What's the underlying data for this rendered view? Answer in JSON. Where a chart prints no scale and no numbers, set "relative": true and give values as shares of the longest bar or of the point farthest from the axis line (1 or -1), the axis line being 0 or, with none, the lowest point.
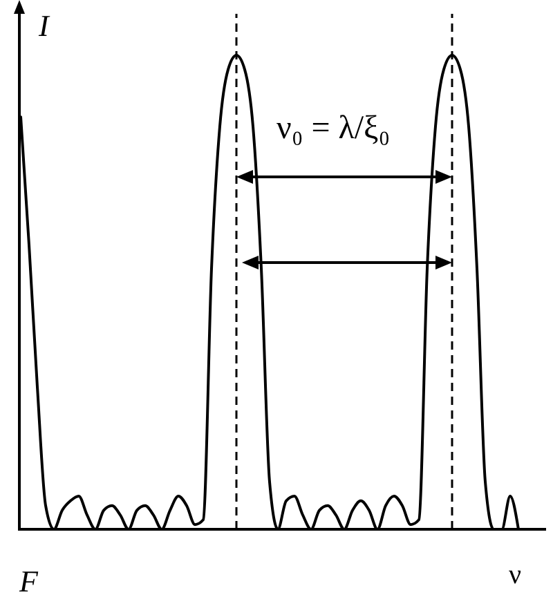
{
  "chart_data": {
    "type": "line",
    "relative": true,
    "xlabel": "ν",
    "ylabel": "I",
    "annotations": [
      "F",
      "ν₀ = λ/ξ₀"
    ],
    "categories": [
      null,
      null,
      null,
      null,
      null,
      null,
      null,
      null,
      null,
      null,
      null,
      null,
      null,
      null,
      null,
      null,
      null,
      null,
      null,
      null,
      null,
      null,
      null,
      null,
      null,
      null,
      null,
      null,
      null,
      null,
      null,
      null,
      null,
      null,
      null,
      null,
      null,
      null,
      null,
      null,
      null,
      null,
      null,
      null,
      null,
      null,
      null,
      null,
      null,
      null,
      null,
      null,
      null,
      null,
      null,
      null,
      null,
      null,
      null,
      null,
      null
    ],
    "series": [
      {
        "color": "#000000",
        "values": [
          0.87,
          0.6,
          0.3,
          0.05,
          0,
          0.04,
          0.06,
          0.07,
          0.03,
          0,
          0.04,
          0.05,
          0.03,
          0,
          0.04,
          0.05,
          0.03,
          0,
          0.04,
          0.07,
          0.05,
          0.01,
          0.02,
          0.55,
          0.85,
          0.97,
          1,
          0.97,
          0.85,
          0.55,
          0.1,
          0,
          0.06,
          0.07,
          0.03,
          0,
          0.04,
          0.05,
          0.03,
          0,
          0.04,
          0.06,
          0.04,
          0,
          0.05,
          0.07,
          0.05,
          0.01,
          0.02,
          0.55,
          0.85,
          0.97,
          1,
          0.97,
          0.85,
          0.55,
          0.1,
          0,
          0,
          0.07,
          0
        ]
      }
    ],
    "line_style": "solid"
  }
}
